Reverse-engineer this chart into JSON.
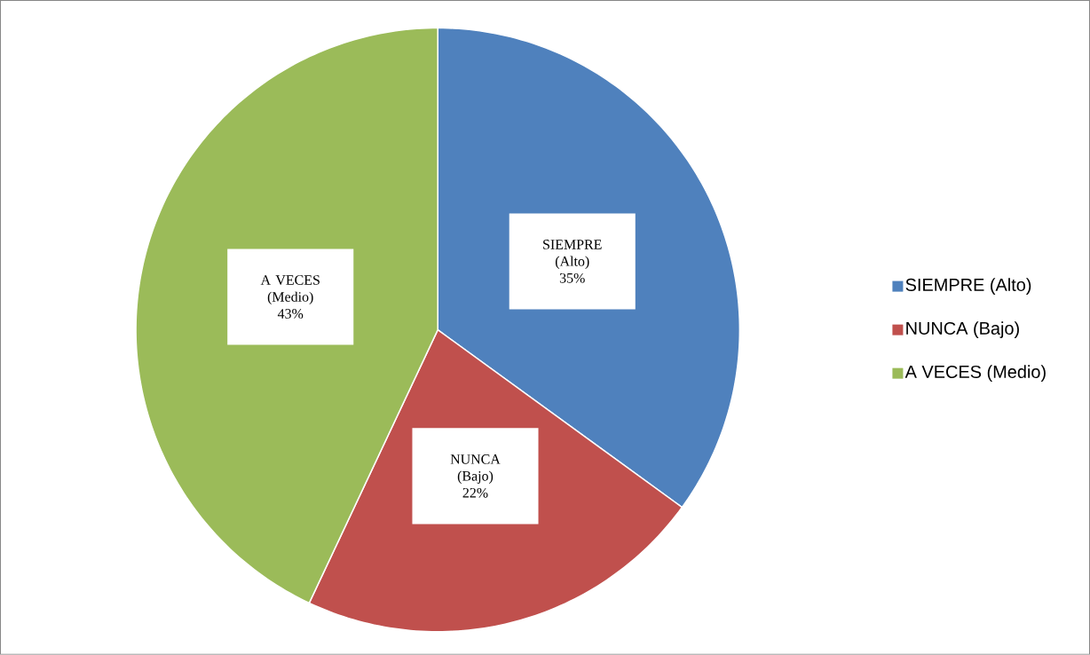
{
  "chart_data": {
    "type": "pie",
    "categories": [
      "SIEMPRE (Alto)",
      "NUNCA (Bajo)",
      "A VECES (Medio)"
    ],
    "values": [
      35,
      22,
      43
    ],
    "value_labels": [
      "35%",
      "22%",
      "43%"
    ],
    "colors": [
      "#4f81bd",
      "#c0504d",
      "#9bbb59"
    ],
    "legend": "right"
  }
}
